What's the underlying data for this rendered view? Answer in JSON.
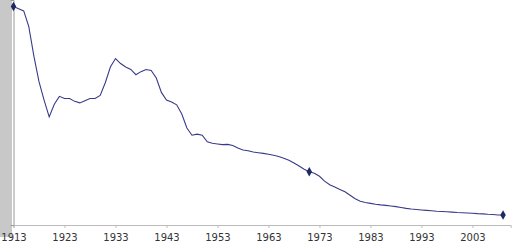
{
  "chart_data": {
    "type": "line",
    "x": [
      1913,
      1914,
      1915,
      1916,
      1917,
      1918,
      1919,
      1920,
      1921,
      1922,
      1923,
      1924,
      1925,
      1926,
      1927,
      1928,
      1929,
      1930,
      1931,
      1932,
      1933,
      1934,
      1935,
      1936,
      1937,
      1938,
      1939,
      1940,
      1941,
      1942,
      1943,
      1944,
      1945,
      1946,
      1947,
      1948,
      1949,
      1950,
      1951,
      1952,
      1953,
      1954,
      1955,
      1956,
      1957,
      1958,
      1959,
      1960,
      1961,
      1962,
      1963,
      1964,
      1965,
      1966,
      1967,
      1968,
      1969,
      1970,
      1971,
      1972,
      1973,
      1974,
      1975,
      1976,
      1977,
      1978,
      1979,
      1980,
      1981,
      1982,
      1983,
      1984,
      1985,
      1986,
      1987,
      1988,
      1989,
      1990,
      1991,
      1992,
      1993,
      1994,
      1995,
      1996,
      1997,
      1998,
      1999,
      2000,
      2001,
      2002,
      2003,
      2004,
      2005,
      2006,
      2007,
      2008,
      2009
    ],
    "series": [
      {
        "type": "line",
        "color": "#3a3a8a",
        "marker": "none",
        "line_style": "solid",
        "values": [
          100,
          99,
          98,
          90.8,
          77.3,
          65.6,
          57.2,
          49.5,
          55.3,
          58.9,
          57.9,
          57.9,
          56.6,
          55.9,
          56.9,
          57.9,
          57.9,
          59.3,
          65.1,
          72.3,
          76.2,
          73.9,
          72.3,
          71.2,
          68.8,
          70.2,
          71.2,
          70.7,
          67.3,
          60.7,
          57.2,
          56.3,
          55.0,
          50.8,
          44.4,
          41.1,
          41.6,
          41.1,
          38.1,
          37.4,
          37.1,
          36.8,
          36.9,
          36.4,
          35.2,
          34.3,
          34.0,
          33.4,
          33.1,
          32.8,
          32.4,
          31.9,
          31.4,
          30.6,
          29.6,
          28.4,
          27.0,
          25.5,
          24.4,
          23.7,
          22.3,
          20.1,
          18.4,
          17.4,
          16.3,
          15.2,
          13.6,
          12.0,
          10.9,
          10.3,
          9.9,
          9.5,
          9.2,
          9.0,
          8.7,
          8.4,
          8.0,
          7.6,
          7.3,
          7.1,
          6.9,
          6.7,
          6.5,
          6.3,
          6.2,
          6.1,
          5.9,
          5.7,
          5.6,
          5.5,
          5.4,
          5.2,
          5.1,
          4.9,
          4.8,
          4.6,
          4.6
        ]
      },
      {
        "type": "scatter",
        "color": "#1c2a66",
        "marker": "diamond",
        "line_style": "none",
        "values": [
          100,
          null,
          null,
          null,
          null,
          null,
          null,
          null,
          null,
          null,
          null,
          null,
          null,
          null,
          null,
          null,
          null,
          null,
          null,
          null,
          null,
          null,
          null,
          null,
          null,
          null,
          null,
          null,
          null,
          null,
          null,
          null,
          null,
          null,
          null,
          null,
          null,
          null,
          null,
          null,
          null,
          null,
          null,
          null,
          null,
          null,
          null,
          null,
          null,
          null,
          null,
          null,
          null,
          null,
          null,
          null,
          null,
          null,
          24.4,
          null,
          null,
          null,
          null,
          null,
          null,
          null,
          null,
          null,
          null,
          null,
          null,
          null,
          null,
          null,
          null,
          null,
          null,
          null,
          null,
          null,
          null,
          null,
          null,
          null,
          null,
          null,
          null,
          null,
          null,
          null,
          null,
          null,
          null,
          null,
          null,
          null,
          4.6
        ]
      }
    ],
    "xlim": [
      1913,
      2010.5
    ],
    "ylim": [
      0,
      103
    ],
    "xticks": [
      1913,
      1923,
      1933,
      1943,
      1953,
      1963,
      1973,
      1983,
      1993,
      2003
    ],
    "tick_labels": "x"
  }
}
